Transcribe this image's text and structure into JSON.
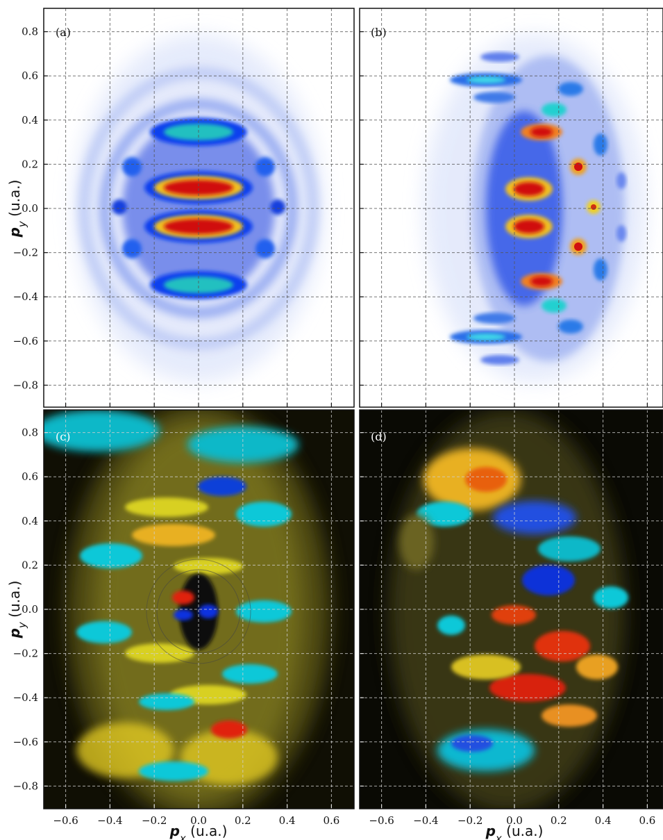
{
  "chart_data": [
    {
      "type": "heatmap",
      "panel_label": "(a)",
      "x_ticks": [
        -0.6,
        -0.4,
        -0.2,
        0.0,
        0.2,
        0.4,
        0.6
      ],
      "y_ticks": [
        0.8,
        0.6,
        0.4,
        0.2,
        0.0,
        -0.2,
        -0.4,
        -0.6,
        -0.8
      ],
      "xlim": [
        -0.7,
        0.7
      ],
      "ylim": [
        -0.9,
        0.9
      ],
      "xlabel": "",
      "ylabel": "p_y (u.a.)",
      "colormap": "white-blue-red",
      "grid": true
    },
    {
      "type": "heatmap",
      "panel_label": "(b)",
      "x_ticks": [
        -0.6,
        -0.4,
        -0.2,
        0.0,
        0.2,
        0.4,
        0.6
      ],
      "y_ticks": [
        0.8,
        0.6,
        0.4,
        0.2,
        0.0,
        -0.2,
        -0.4,
        -0.6,
        -0.8
      ],
      "xlim": [
        -0.7,
        0.7
      ],
      "ylim": [
        -0.9,
        0.9
      ],
      "xlabel": "",
      "ylabel": "",
      "colormap": "white-blue-red",
      "grid": true
    },
    {
      "type": "heatmap",
      "panel_label": "(c)",
      "x_ticks": [
        -0.6,
        -0.4,
        -0.2,
        0.0,
        0.2,
        0.4,
        0.6
      ],
      "y_ticks": [
        0.8,
        0.6,
        0.4,
        0.2,
        0.0,
        -0.2,
        -0.4,
        -0.6,
        -0.8
      ],
      "xlim": [
        -0.7,
        0.7
      ],
      "ylim": [
        -0.9,
        0.9
      ],
      "xlabel": "p_x (u.a.)",
      "ylabel": "p_y (u.a.)",
      "colormap": "cyan-blue-black-yellow-red",
      "grid": true
    },
    {
      "type": "heatmap",
      "panel_label": "(d)",
      "x_ticks": [
        -0.6,
        -0.4,
        -0.2,
        0.0,
        0.2,
        0.4,
        0.6
      ],
      "y_ticks": [
        0.8,
        0.6,
        0.4,
        0.2,
        0.0,
        -0.2,
        -0.4,
        -0.6,
        -0.8
      ],
      "xlim": [
        -0.7,
        0.7
      ],
      "ylim": [
        -0.9,
        0.9
      ],
      "xlabel": "p_x (u.a.)",
      "ylabel": "",
      "colormap": "cyan-blue-black-yellow-red",
      "grid": true
    }
  ],
  "labels": {
    "py_main": "p",
    "py_sub": "y",
    "py_unit": " (u.a.)",
    "px_main": "p",
    "px_sub": "x",
    "px_unit": " (u.a.)"
  },
  "colors": {
    "map_white": "#ffffff",
    "map_blue": "#1030d0",
    "map_red": "#d01010",
    "div_black": "#050505",
    "div_cyan": "#10e0f0",
    "div_yellow": "#f0e020"
  }
}
